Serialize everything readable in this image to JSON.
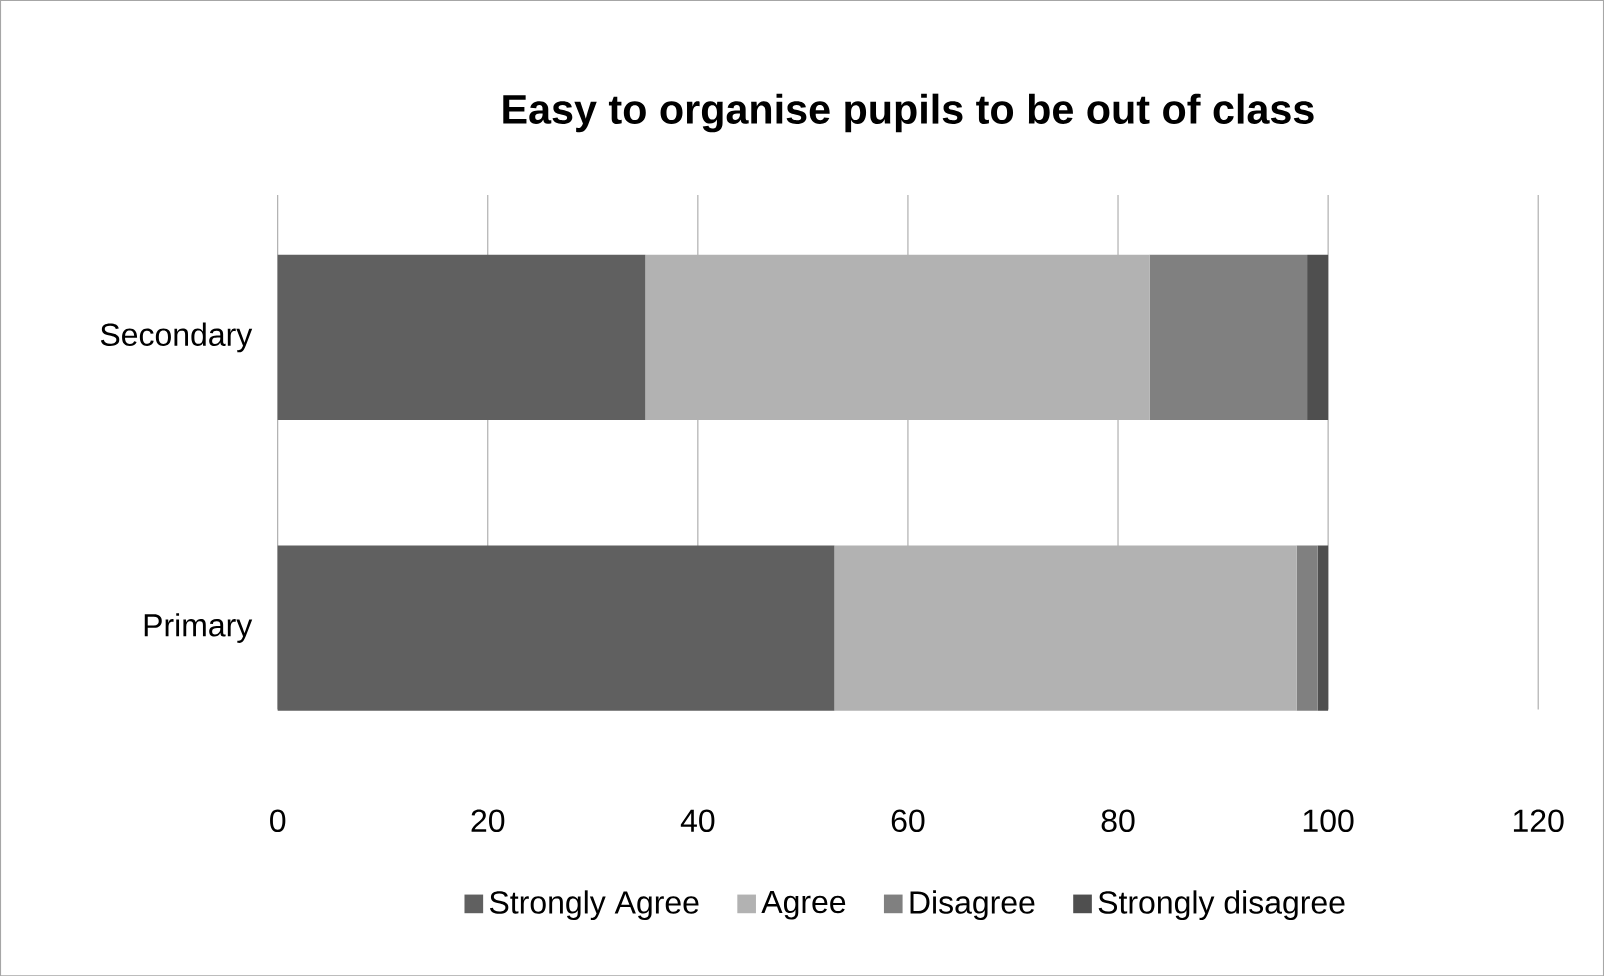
{
  "chart_data": {
    "type": "bar",
    "orientation": "horizontal",
    "stacked": true,
    "title": "Easy to organise pupils to be out of class",
    "categories": [
      "Secondary",
      "Primary"
    ],
    "series": [
      {
        "name": "Strongly Agree",
        "color": "#606060",
        "values": [
          35,
          53
        ]
      },
      {
        "name": "Agree",
        "color": "#b2b2b2",
        "values": [
          48,
          44
        ]
      },
      {
        "name": "Disagree",
        "color": "#808080",
        "values": [
          15,
          2
        ]
      },
      {
        "name": "Strongly disagree",
        "color": "#4f4f4f",
        "values": [
          2,
          1
        ]
      }
    ],
    "xlim": [
      0,
      120
    ],
    "xticks": [
      0,
      20,
      40,
      60,
      80,
      100,
      120
    ],
    "grid": "x",
    "legend": "bottom"
  }
}
